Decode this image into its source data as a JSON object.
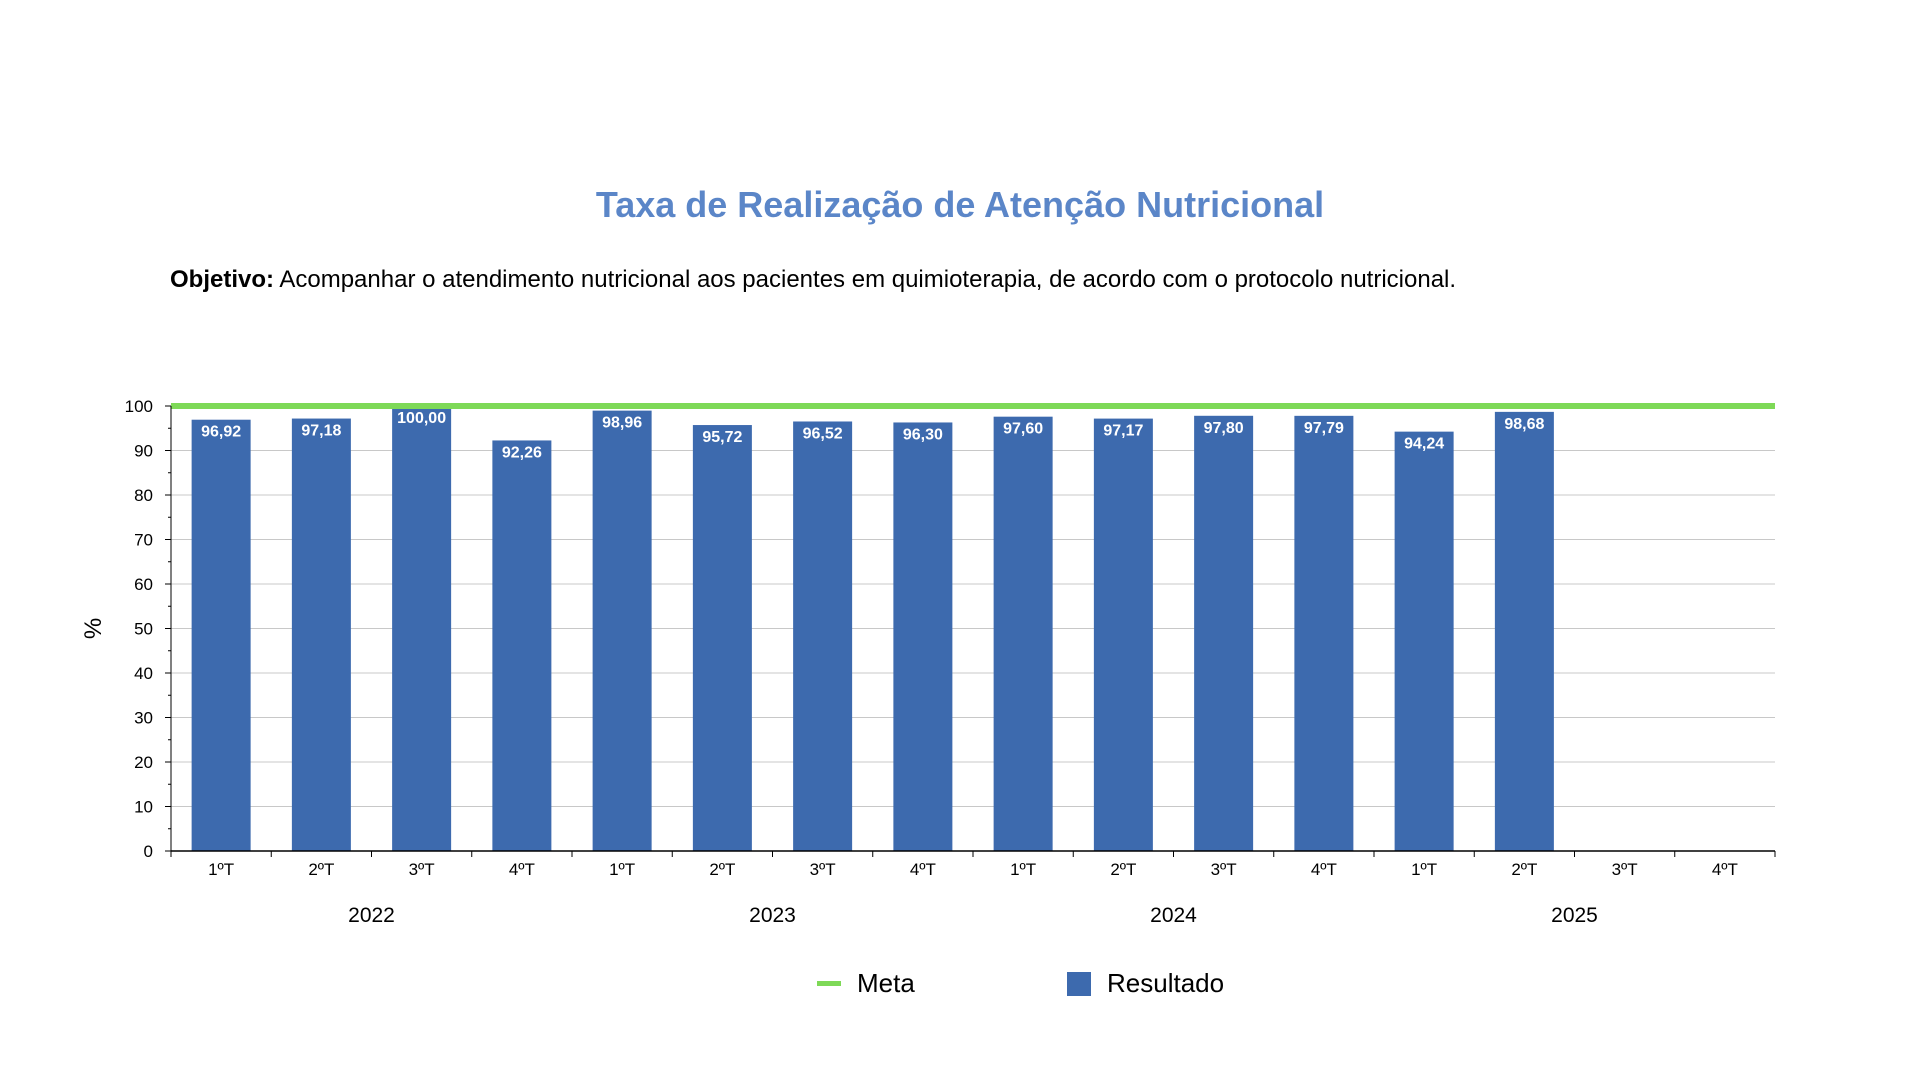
{
  "title": "Taxa de Realização de Atenção Nutricional",
  "objective": {
    "label": "Objetivo:",
    "text": "Acompanhar o atendimento nutricional aos pacientes em quimioterapia, de acordo com o protocolo nutricional."
  },
  "colors": {
    "bar": "#3d6aae",
    "meta": "#7ed957",
    "title": "#5b86c8"
  },
  "chart_data": {
    "type": "bar",
    "title": "Taxa de Realização de Atenção Nutricional",
    "ylabel": "%",
    "ylim": [
      0,
      100
    ],
    "yticks": [
      0,
      10,
      20,
      30,
      40,
      50,
      60,
      70,
      80,
      90,
      100
    ],
    "grid": true,
    "legend_position": "bottom",
    "categories": [
      "1ºT",
      "2ºT",
      "3ºT",
      "4ºT",
      "1ºT",
      "2ºT",
      "3ºT",
      "4ºT",
      "1ºT",
      "2ºT",
      "3ºT",
      "4ºT",
      "1ºT",
      "2ºT",
      "3ºT",
      "4ºT"
    ],
    "groups": [
      {
        "label": "2022",
        "span": 4
      },
      {
        "label": "2023",
        "span": 4
      },
      {
        "label": "2024",
        "span": 4
      },
      {
        "label": "2025",
        "span": 4
      }
    ],
    "series": [
      {
        "name": "Resultado",
        "type": "bar",
        "values": [
          96.92,
          97.18,
          100.0,
          92.26,
          98.96,
          95.72,
          96.52,
          96.3,
          97.6,
          97.17,
          97.8,
          97.79,
          94.24,
          98.68,
          null,
          null
        ],
        "labels": [
          "96,92",
          "97,18",
          "100,00",
          "92,26",
          "98,96",
          "95,72",
          "96,52",
          "96,30",
          "97,60",
          "97,17",
          "97,80",
          "97,79",
          "94,24",
          "98,68",
          "",
          ""
        ]
      },
      {
        "name": "Meta",
        "type": "line",
        "values": [
          100,
          100,
          100,
          100,
          100,
          100,
          100,
          100,
          100,
          100,
          100,
          100,
          100,
          100,
          100,
          100
        ]
      }
    ]
  },
  "legend": {
    "meta": "Meta",
    "resultado": "Resultado"
  }
}
